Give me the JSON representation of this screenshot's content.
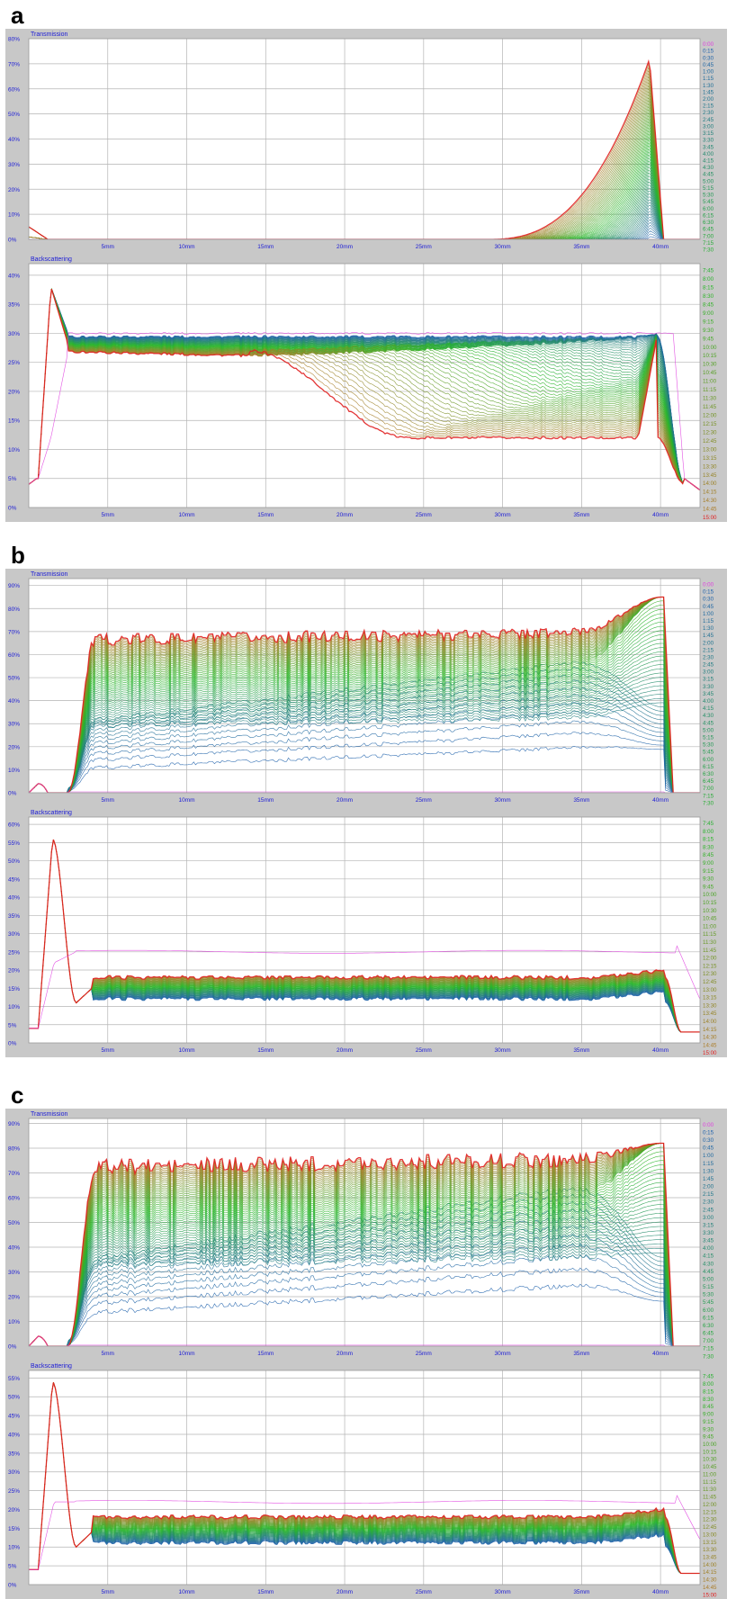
{
  "colors": {
    "frame": "#c8c8c8",
    "plot_bg": "#ffffff",
    "grid": "#b4b4b4",
    "axis_text": "#1b1bd6",
    "header_text": "#1b1bd6",
    "first_scan": "#e040e0",
    "last_scan": "#e02020",
    "gradient_start": "#1f5fb0",
    "gradient_mid": "#28b628",
    "gradient_end": "#b07a28"
  },
  "time_labels": [
    "0:00",
    "0:15",
    "0:30",
    "0:45",
    "1:00",
    "1:15",
    "1:30",
    "1:45",
    "2:00",
    "2:15",
    "2:30",
    "2:45",
    "3:00",
    "3:15",
    "3:30",
    "3:45",
    "4:00",
    "4:15",
    "4:30",
    "4:45",
    "5:00",
    "5:15",
    "5:30",
    "5:45",
    "6:00",
    "6:15",
    "6:30",
    "6:45",
    "7:00",
    "7:15",
    "7:30",
    "7:45",
    "8:00",
    "8:15",
    "8:30",
    "8:45",
    "9:00",
    "9:15",
    "9:30",
    "9:45",
    "10:00",
    "10:15",
    "10:30",
    "10:45",
    "11:00",
    "11:15",
    "11:30",
    "11:45",
    "12:00",
    "12:15",
    "12:30",
    "12:45",
    "13:00",
    "13:15",
    "13:30",
    "13:45",
    "14:00",
    "14:15",
    "14:30",
    "14:45",
    "15:00"
  ],
  "panels": [
    {
      "letter": "a",
      "charts": [
        {
          "type": "line",
          "title": "Transmission",
          "x_ticks": [
            "5mm",
            "10mm",
            "15mm",
            "20mm",
            "25mm",
            "30mm",
            "35mm",
            "40mm"
          ],
          "y_ticks": [
            "0%",
            "10%",
            "20%",
            "30%",
            "40%",
            "50%",
            "60%",
            "70%",
            "80%"
          ],
          "ylim": [
            0,
            80
          ],
          "xlim": [
            0,
            42.5
          ],
          "profile": {
            "kind": "transmission_edge",
            "base": 0.0,
            "rise_start": 29,
            "peak_x": 39.3,
            "peak": 72,
            "peak_first": 0,
            "spike": 5
          }
        },
        {
          "type": "line",
          "title": "Backscattering",
          "x_ticks": [
            "5mm",
            "10mm",
            "15mm",
            "20mm",
            "25mm",
            "30mm",
            "35mm",
            "40mm"
          ],
          "y_ticks": [
            "0%",
            "5%",
            "10%",
            "15%",
            "20%",
            "25%",
            "30%",
            "35%",
            "40%"
          ],
          "ylim": [
            0,
            42
          ],
          "xlim": [
            0,
            42.5
          ],
          "profile": {
            "kind": "backscatter_clarify",
            "base_first": 30,
            "plateau_start": 30,
            "plateau_end": 12,
            "peak": 38,
            "end_x": 39.5
          }
        }
      ]
    },
    {
      "letter": "b",
      "charts": [
        {
          "type": "line",
          "title": "Transmission",
          "x_ticks": [
            "5mm",
            "10mm",
            "15mm",
            "20mm",
            "25mm",
            "30mm",
            "35mm",
            "40mm"
          ],
          "y_ticks": [
            "0%",
            "10%",
            "20%",
            "30%",
            "40%",
            "50%",
            "60%",
            "70%",
            "80%",
            "90%"
          ],
          "ylim": [
            0,
            93
          ],
          "xlim": [
            0,
            42.5
          ],
          "profile": {
            "kind": "transmission_full",
            "final": 66,
            "min_last": 3,
            "peak": 85,
            "noise": 5
          }
        },
        {
          "type": "line",
          "title": "Backscattering",
          "x_ticks": [
            "5mm",
            "10mm",
            "15mm",
            "20mm",
            "25mm",
            "30mm",
            "35mm",
            "40mm"
          ],
          "y_ticks": [
            "0%",
            "5%",
            "10%",
            "15%",
            "20%",
            "25%",
            "30%",
            "35%",
            "40%",
            "45%",
            "50%",
            "55%",
            "60%"
          ],
          "ylim": [
            0,
            62
          ],
          "xlim": [
            0,
            42.5
          ],
          "profile": {
            "kind": "backscatter_flat",
            "first": 25,
            "low": 11,
            "high": 18,
            "peak": 56
          }
        }
      ]
    },
    {
      "letter": "c",
      "charts": [
        {
          "type": "line",
          "title": "Transmission",
          "x_ticks": [
            "5mm",
            "10mm",
            "15mm",
            "20mm",
            "25mm",
            "30mm",
            "35mm",
            "40mm"
          ],
          "y_ticks": [
            "0%",
            "10%",
            "20%",
            "30%",
            "40%",
            "50%",
            "60%",
            "70%",
            "80%",
            "90%"
          ],
          "ylim": [
            0,
            92
          ],
          "xlim": [
            0,
            42.5
          ],
          "profile": {
            "kind": "transmission_full",
            "final": 72,
            "min_last": 5,
            "peak": 82,
            "noise": 6
          }
        },
        {
          "type": "line",
          "title": "Backscattering",
          "x_ticks": [
            "5mm",
            "10mm",
            "15mm",
            "20mm",
            "25mm",
            "30mm",
            "35mm",
            "40mm"
          ],
          "y_ticks": [
            "0%",
            "5%",
            "10%",
            "15%",
            "20%",
            "25%",
            "30%",
            "35%",
            "40%",
            "45%",
            "50%",
            "55%"
          ],
          "ylim": [
            0,
            57
          ],
          "xlim": [
            0,
            42.5
          ],
          "profile": {
            "kind": "backscatter_flat",
            "first": 22,
            "low": 10,
            "high": 18,
            "peak": 54
          }
        }
      ]
    }
  ]
}
